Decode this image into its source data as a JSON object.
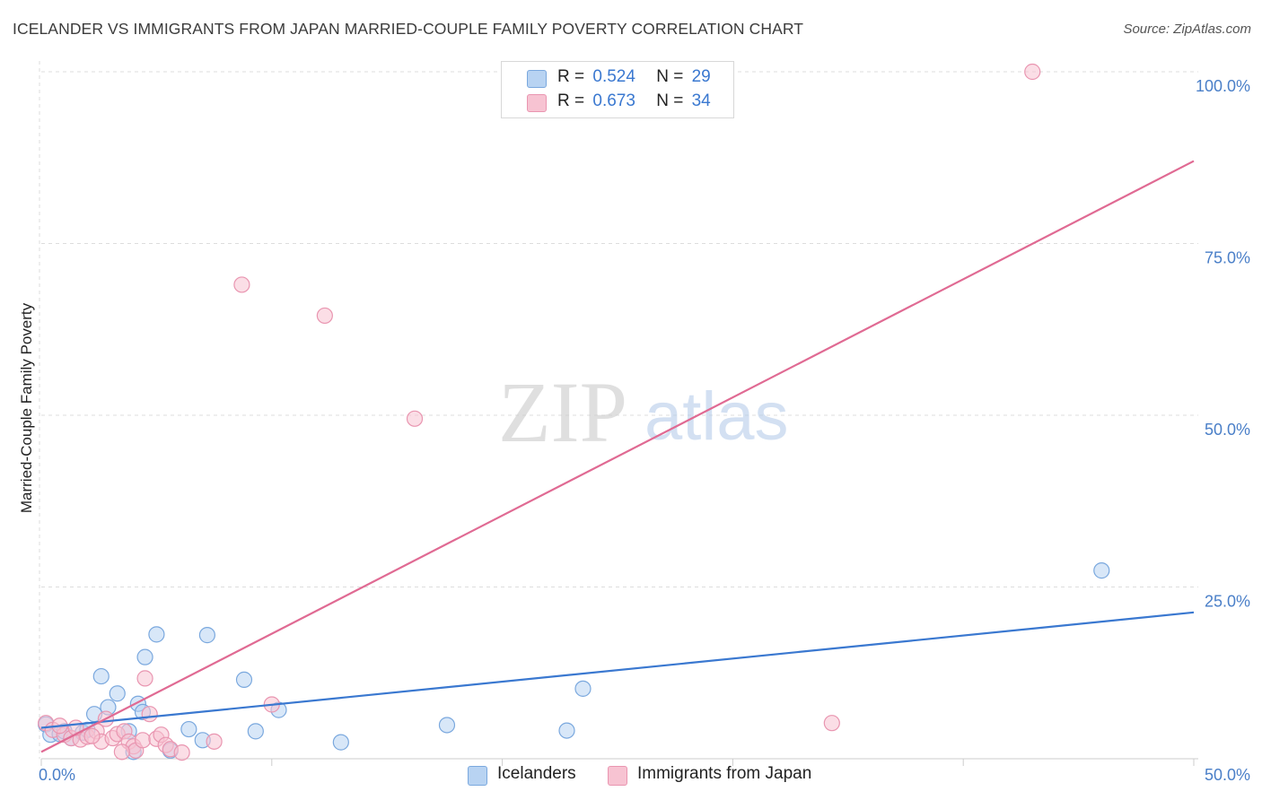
{
  "title": "ICELANDER VS IMMIGRANTS FROM JAPAN MARRIED-COUPLE FAMILY POVERTY CORRELATION CHART",
  "source": "Source: ZipAtlas.com",
  "watermark": {
    "zip": "ZIP",
    "atlas": "atlas"
  },
  "legend": {
    "rows": [
      {
        "r_label": "R =",
        "r_value": "0.524",
        "n_label": "N =",
        "n_value": "29"
      },
      {
        "r_label": "R =",
        "r_value": "0.673",
        "n_label": "N =",
        "n_value": "34"
      }
    ]
  },
  "bottom_legend": {
    "icelanders": "Icelanders",
    "japan": "Immigrants from Japan"
  },
  "colors": {
    "blue_fill": "#b8d3f2",
    "blue_stroke": "#7aa8de",
    "blue_line": "#3a78d0",
    "pink_fill": "#f7c3d2",
    "pink_stroke": "#e995b0",
    "pink_line": "#e06a93",
    "tick": "#4a7fc8",
    "grid": "#dddddd"
  },
  "chart_data": {
    "type": "scatter",
    "title": "ICELANDER VS IMMIGRANTS FROM JAPAN MARRIED-COUPLE FAMILY POVERTY CORRELATION CHART",
    "xlabel": "",
    "ylabel": "Married-Couple Family Poverty",
    "xlim": [
      0,
      50
    ],
    "ylim": [
      0,
      100
    ],
    "x_tick_labels": [
      "0.0%",
      "50.0%"
    ],
    "y_ticks": [
      25,
      50,
      75,
      100
    ],
    "y_tick_labels": [
      "25.0%",
      "50.0%",
      "75.0%",
      "100.0%"
    ],
    "grid": true,
    "legend_position": "top-center",
    "series": [
      {
        "name": "Icelanders",
        "R": 0.524,
        "N": 29,
        "trend": {
          "x": [
            0,
            50
          ],
          "y": [
            4.5,
            21.3
          ]
        },
        "points": [
          [
            0.2,
            5.0
          ],
          [
            0.4,
            3.5
          ],
          [
            0.8,
            3.6
          ],
          [
            1.3,
            3.0
          ],
          [
            1.8,
            3.8
          ],
          [
            2.0,
            4.2
          ],
          [
            2.3,
            6.5
          ],
          [
            2.6,
            12.0
          ],
          [
            2.9,
            7.5
          ],
          [
            3.3,
            9.5
          ],
          [
            3.8,
            4.0
          ],
          [
            4.0,
            1.0
          ],
          [
            4.2,
            8.0
          ],
          [
            4.4,
            6.8
          ],
          [
            4.5,
            14.8
          ],
          [
            5.0,
            18.1
          ],
          [
            5.6,
            1.2
          ],
          [
            6.4,
            4.3
          ],
          [
            7.0,
            2.7
          ],
          [
            7.2,
            18.0
          ],
          [
            8.8,
            11.5
          ],
          [
            9.3,
            4.0
          ],
          [
            10.3,
            7.1
          ],
          [
            13.0,
            2.4
          ],
          [
            17.6,
            4.9
          ],
          [
            22.8,
            4.1
          ],
          [
            23.5,
            10.2
          ],
          [
            46.0,
            27.4
          ],
          [
            1.0,
            4.0
          ]
        ]
      },
      {
        "name": "Immigrants from Japan",
        "R": 0.673,
        "N": 34,
        "trend": {
          "x": [
            0,
            50
          ],
          "y": [
            1.0,
            87.0
          ]
        },
        "points": [
          [
            0.2,
            5.2
          ],
          [
            0.5,
            4.2
          ],
          [
            1.0,
            3.5
          ],
          [
            1.3,
            3.0
          ],
          [
            1.7,
            2.8
          ],
          [
            2.0,
            3.2
          ],
          [
            2.4,
            4.0
          ],
          [
            2.6,
            2.5
          ],
          [
            2.8,
            5.8
          ],
          [
            3.1,
            3.0
          ],
          [
            3.3,
            3.6
          ],
          [
            3.6,
            4.0
          ],
          [
            3.8,
            2.5
          ],
          [
            4.0,
            1.8
          ],
          [
            4.1,
            1.2
          ],
          [
            4.4,
            2.7
          ],
          [
            4.5,
            11.7
          ],
          [
            4.7,
            6.5
          ],
          [
            5.0,
            2.9
          ],
          [
            5.2,
            3.5
          ],
          [
            5.4,
            2.0
          ],
          [
            5.6,
            1.4
          ],
          [
            6.1,
            0.9
          ],
          [
            7.5,
            2.5
          ],
          [
            8.7,
            69.0
          ],
          [
            10.0,
            7.9
          ],
          [
            12.3,
            64.5
          ],
          [
            16.2,
            49.5
          ],
          [
            34.3,
            5.2
          ],
          [
            43.0,
            100.0
          ],
          [
            0.8,
            4.8
          ],
          [
            1.5,
            4.5
          ],
          [
            2.2,
            3.3
          ],
          [
            3.5,
            1.0
          ]
        ]
      }
    ]
  }
}
